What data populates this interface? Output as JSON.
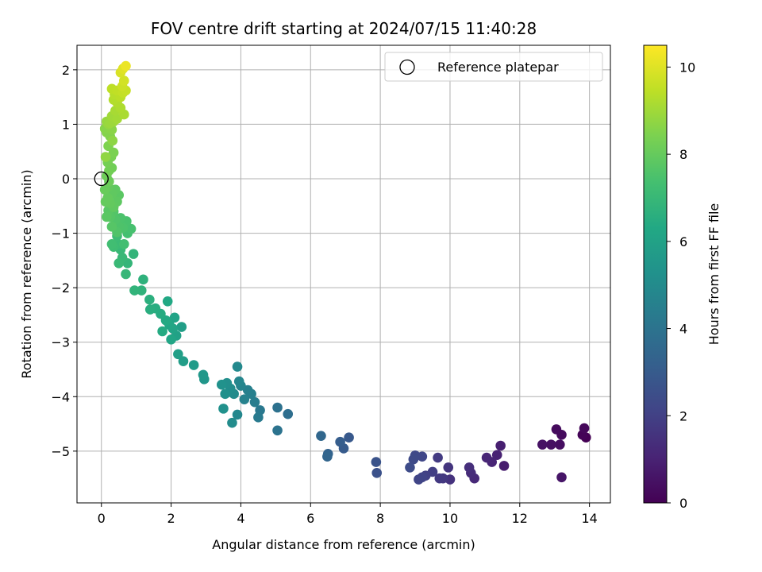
{
  "chart_data": {
    "type": "scatter",
    "title": "FOV centre drift starting at 2024/07/15 11:40:28",
    "xlabel": "Angular distance from reference (arcmin)",
    "ylabel": "Rotation from reference (arcmin)",
    "xlim": [
      -0.7,
      14.6
    ],
    "ylim": [
      -5.95,
      2.45
    ],
    "xticks": [
      0,
      2,
      4,
      6,
      8,
      10,
      12,
      14
    ],
    "xtick_labels": [
      "0",
      "2",
      "4",
      "6",
      "8",
      "10",
      "12",
      "14"
    ],
    "yticks": [
      2,
      1,
      0,
      -1,
      -2,
      -3,
      -4,
      -5
    ],
    "ytick_labels": [
      "2",
      "1",
      "0",
      "−1",
      "−2",
      "−3",
      "−4",
      "−5"
    ],
    "grid": true,
    "legend": {
      "position": "upper right",
      "entries": [
        {
          "label": "Reference platepar",
          "marker": "open-circle"
        }
      ]
    },
    "reference_point": {
      "x": 0,
      "y": 0
    },
    "colorbar": {
      "label": "Hours from first FF file",
      "range": [
        0,
        10.5
      ],
      "ticks": [
        0,
        2,
        4,
        6,
        8,
        10
      ],
      "tick_labels": [
        "0",
        "2",
        "4",
        "6",
        "8",
        "10"
      ],
      "colormap": "viridis"
    },
    "points": [
      [
        13.9,
        -4.75,
        0.0
      ],
      [
        13.8,
        -4.7,
        0.1
      ],
      [
        13.85,
        -4.58,
        0.2
      ],
      [
        13.2,
        -4.7,
        0.3
      ],
      [
        13.05,
        -4.6,
        0.3
      ],
      [
        13.15,
        -4.88,
        0.4
      ],
      [
        12.9,
        -4.88,
        0.45
      ],
      [
        12.65,
        -4.88,
        0.5
      ],
      [
        13.2,
        -5.48,
        0.6
      ],
      [
        11.55,
        -5.27,
        0.8
      ],
      [
        11.45,
        -4.9,
        0.9
      ],
      [
        11.35,
        -5.07,
        1.0
      ],
      [
        11.2,
        -5.2,
        1.05
      ],
      [
        11.05,
        -5.12,
        1.1
      ],
      [
        10.7,
        -5.5,
        1.2
      ],
      [
        10.6,
        -5.4,
        1.3
      ],
      [
        10.55,
        -5.3,
        1.4
      ],
      [
        10.0,
        -5.52,
        1.5
      ],
      [
        9.95,
        -5.3,
        1.6
      ],
      [
        9.8,
        -5.5,
        1.7
      ],
      [
        9.7,
        -5.5,
        1.75
      ],
      [
        9.65,
        -5.12,
        1.8
      ],
      [
        9.5,
        -5.38,
        1.9
      ],
      [
        9.3,
        -5.45,
        2.0
      ],
      [
        9.2,
        -5.48,
        2.1
      ],
      [
        9.1,
        -5.52,
        2.15
      ],
      [
        9.2,
        -5.1,
        2.2
      ],
      [
        9.0,
        -5.08,
        2.3
      ],
      [
        8.95,
        -5.15,
        2.35
      ],
      [
        8.85,
        -5.3,
        2.4
      ],
      [
        7.9,
        -5.4,
        2.6
      ],
      [
        7.88,
        -5.2,
        2.7
      ],
      [
        7.1,
        -4.75,
        2.9
      ],
      [
        6.95,
        -4.95,
        3.0
      ],
      [
        6.85,
        -4.83,
        3.1
      ],
      [
        6.5,
        -5.05,
        3.3
      ],
      [
        6.48,
        -5.1,
        3.4
      ],
      [
        6.3,
        -4.72,
        3.5
      ],
      [
        5.35,
        -4.32,
        3.8
      ],
      [
        5.05,
        -4.2,
        3.9
      ],
      [
        5.05,
        -4.62,
        4.0
      ],
      [
        4.55,
        -4.25,
        4.2
      ],
      [
        4.5,
        -4.38,
        4.3
      ],
      [
        4.4,
        -4.1,
        4.4
      ],
      [
        4.3,
        -3.95,
        4.5
      ],
      [
        4.2,
        -3.88,
        4.55
      ],
      [
        4.1,
        -4.05,
        4.6
      ],
      [
        4.0,
        -3.8,
        4.7
      ],
      [
        3.95,
        -3.72,
        4.8
      ],
      [
        3.9,
        -4.33,
        4.85
      ],
      [
        3.9,
        -3.45,
        4.9
      ],
      [
        3.8,
        -3.95,
        5.0
      ],
      [
        3.75,
        -4.48,
        5.05
      ],
      [
        3.7,
        -3.85,
        5.1
      ],
      [
        3.6,
        -3.75,
        5.15
      ],
      [
        3.55,
        -3.95,
        5.2
      ],
      [
        3.5,
        -4.22,
        5.25
      ],
      [
        3.45,
        -3.78,
        5.3
      ],
      [
        2.95,
        -3.68,
        5.5
      ],
      [
        2.92,
        -3.6,
        5.55
      ],
      [
        2.65,
        -3.42,
        5.7
      ],
      [
        2.35,
        -3.35,
        5.8
      ],
      [
        2.3,
        -2.72,
        5.85
      ],
      [
        2.2,
        -3.22,
        5.9
      ],
      [
        2.15,
        -2.88,
        6.0
      ],
      [
        2.1,
        -2.55,
        6.05
      ],
      [
        2.05,
        -2.75,
        6.1
      ],
      [
        2.0,
        -2.95,
        6.15
      ],
      [
        1.95,
        -2.68,
        6.2
      ],
      [
        1.9,
        -2.25,
        6.3
      ],
      [
        1.85,
        -2.6,
        6.35
      ],
      [
        1.75,
        -2.8,
        6.4
      ],
      [
        1.7,
        -2.48,
        6.45
      ],
      [
        1.55,
        -2.38,
        6.5
      ],
      [
        1.4,
        -2.4,
        6.55
      ],
      [
        1.38,
        -2.22,
        6.6
      ],
      [
        1.2,
        -1.85,
        6.7
      ],
      [
        1.15,
        -2.05,
        6.75
      ],
      [
        0.95,
        -2.05,
        6.8
      ],
      [
        0.92,
        -1.38,
        6.85
      ],
      [
        0.75,
        -1.55,
        6.9
      ],
      [
        0.7,
        -1.75,
        6.95
      ],
      [
        0.6,
        -1.45,
        7.0
      ],
      [
        0.55,
        -1.3,
        7.0
      ],
      [
        0.5,
        -1.55,
        7.05
      ],
      [
        0.48,
        -1.2,
        7.1
      ],
      [
        0.45,
        -1.05,
        7.15
      ],
      [
        0.35,
        -1.25,
        7.2
      ],
      [
        0.3,
        -1.2,
        7.25
      ],
      [
        0.65,
        -1.2,
        7.3
      ],
      [
        0.75,
        -1.0,
        7.35
      ],
      [
        0.85,
        -0.92,
        7.4
      ],
      [
        0.72,
        -0.78,
        7.45
      ],
      [
        0.62,
        -0.9,
        7.5
      ],
      [
        0.55,
        -0.72,
        7.5
      ],
      [
        0.5,
        -0.88,
        7.55
      ],
      [
        0.45,
        -0.98,
        7.6
      ],
      [
        0.4,
        -0.75,
        7.6
      ],
      [
        0.35,
        -0.6,
        7.65
      ],
      [
        0.3,
        -0.88,
        7.7
      ],
      [
        0.25,
        -0.7,
        7.7
      ],
      [
        0.2,
        -0.58,
        7.75
      ],
      [
        0.15,
        -0.7,
        7.8
      ],
      [
        0.5,
        -0.3,
        7.8
      ],
      [
        0.45,
        -0.42,
        7.85
      ],
      [
        0.4,
        -0.2,
        7.85
      ],
      [
        0.35,
        -0.52,
        7.9
      ],
      [
        0.3,
        -0.28,
        7.9
      ],
      [
        0.25,
        -0.45,
        7.95
      ],
      [
        0.2,
        -0.15,
        7.95
      ],
      [
        0.18,
        -0.35,
        8.0
      ],
      [
        0.12,
        -0.42,
        8.0
      ],
      [
        0.1,
        -0.2,
        8.05
      ],
      [
        0.22,
        -0.05,
        8.1
      ],
      [
        0.15,
        0.05,
        8.15
      ],
      [
        0.3,
        0.2,
        8.2
      ],
      [
        0.22,
        0.15,
        8.25
      ],
      [
        0.18,
        0.3,
        8.3
      ],
      [
        0.28,
        0.4,
        8.35
      ],
      [
        0.35,
        0.48,
        8.4
      ],
      [
        0.2,
        0.6,
        8.45
      ],
      [
        0.25,
        0.78,
        8.5
      ],
      [
        0.15,
        0.85,
        8.55
      ],
      [
        0.1,
        0.92,
        8.6
      ],
      [
        0.3,
        0.9,
        8.65
      ],
      [
        0.32,
        0.7,
        8.7
      ],
      [
        0.12,
        0.4,
        8.75
      ],
      [
        0.2,
        1.0,
        8.8
      ],
      [
        0.15,
        1.05,
        8.85
      ],
      [
        0.25,
        1.02,
        8.9
      ],
      [
        0.35,
        1.05,
        8.95
      ],
      [
        0.3,
        1.15,
        9.0
      ],
      [
        0.45,
        1.1,
        9.05
      ],
      [
        0.4,
        1.25,
        9.1
      ],
      [
        0.65,
        1.18,
        9.15
      ],
      [
        0.55,
        1.3,
        9.2
      ],
      [
        0.45,
        1.4,
        9.25
      ],
      [
        0.35,
        1.45,
        9.3
      ],
      [
        0.38,
        1.55,
        9.35
      ],
      [
        0.55,
        1.5,
        9.4
      ],
      [
        0.3,
        1.65,
        9.45
      ],
      [
        0.45,
        1.62,
        9.5
      ],
      [
        0.62,
        1.58,
        9.55
      ],
      [
        0.7,
        1.62,
        9.6
      ],
      [
        0.6,
        1.7,
        9.7
      ],
      [
        0.65,
        1.8,
        9.8
      ],
      [
        0.55,
        1.95,
        9.9
      ],
      [
        0.62,
        2.02,
        10.0
      ],
      [
        0.7,
        2.07,
        10.2
      ]
    ]
  }
}
